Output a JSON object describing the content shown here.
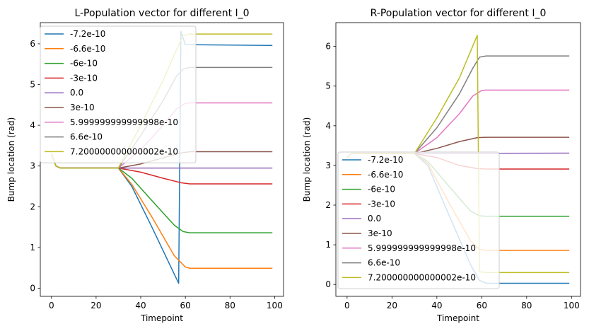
{
  "chart_data": [
    {
      "type": "line",
      "title": "L-Population vector for different I_0",
      "xlabel": "Timepoint",
      "ylabel": "Bump location (rad)",
      "xlim": [
        -5,
        104
      ],
      "ylim": [
        -0.2,
        6.52
      ],
      "xticks": [
        "0",
        "20",
        "40",
        "60",
        "80",
        "100"
      ],
      "yticks": [
        "0",
        "1",
        "2",
        "3",
        "4",
        "5",
        "6"
      ],
      "legend": "upper-left",
      "series": [
        {
          "name": "-7.2e-10",
          "color": "#1f77b4",
          "points": [
            [
              0,
              3.3
            ],
            [
              2,
              3.0
            ],
            [
              4,
              2.95
            ],
            [
              30,
              2.95
            ],
            [
              36,
              2.5
            ],
            [
              45,
              1.5
            ],
            [
              57,
              0.12
            ],
            [
              58,
              6.3
            ],
            [
              60,
              5.98
            ],
            [
              99,
              5.96
            ]
          ]
        },
        {
          "name": "-6.6e-10",
          "color": "#ff7f0e",
          "points": [
            [
              0,
              3.3
            ],
            [
              2,
              3.0
            ],
            [
              4,
              2.95
            ],
            [
              30,
              2.95
            ],
            [
              36,
              2.55
            ],
            [
              45,
              1.75
            ],
            [
              55,
              0.8
            ],
            [
              60,
              0.52
            ],
            [
              62,
              0.49
            ],
            [
              99,
              0.49
            ]
          ]
        },
        {
          "name": "-6e-10",
          "color": "#2ca02c",
          "points": [
            [
              0,
              3.3
            ],
            [
              2,
              3.0
            ],
            [
              4,
              2.95
            ],
            [
              30,
              2.95
            ],
            [
              36,
              2.7
            ],
            [
              45,
              2.15
            ],
            [
              55,
              1.55
            ],
            [
              59,
              1.39
            ],
            [
              62,
              1.36
            ],
            [
              99,
              1.36
            ]
          ]
        },
        {
          "name": "-3e-10",
          "color": "#d62728",
          "points": [
            [
              0,
              3.3
            ],
            [
              2,
              3.0
            ],
            [
              4,
              2.95
            ],
            [
              30,
              2.95
            ],
            [
              40,
              2.85
            ],
            [
              50,
              2.7
            ],
            [
              58,
              2.59
            ],
            [
              62,
              2.56
            ],
            [
              99,
              2.56
            ]
          ]
        },
        {
          "name": "0.0",
          "color": "#9467bd",
          "points": [
            [
              0,
              3.3
            ],
            [
              2,
              3.0
            ],
            [
              4,
              2.95
            ],
            [
              99,
              2.95
            ]
          ]
        },
        {
          "name": "3e-10",
          "color": "#8c564b",
          "points": [
            [
              0,
              3.3
            ],
            [
              2,
              3.0
            ],
            [
              4,
              2.95
            ],
            [
              30,
              2.95
            ],
            [
              40,
              3.05
            ],
            [
              50,
              3.2
            ],
            [
              58,
              3.32
            ],
            [
              62,
              3.35
            ],
            [
              99,
              3.35
            ]
          ]
        },
        {
          "name": "5.999999999999998e-10",
          "color": "#e377c2",
          "points": [
            [
              0,
              3.3
            ],
            [
              2,
              3.0
            ],
            [
              4,
              2.95
            ],
            [
              30,
              2.95
            ],
            [
              40,
              3.4
            ],
            [
              50,
              4.0
            ],
            [
              56,
              4.4
            ],
            [
              60,
              4.54
            ],
            [
              62,
              4.55
            ],
            [
              99,
              4.55
            ]
          ]
        },
        {
          "name": "6.6e-10",
          "color": "#7f7f7f",
          "points": [
            [
              0,
              3.3
            ],
            [
              2,
              3.0
            ],
            [
              4,
              2.95
            ],
            [
              30,
              2.95
            ],
            [
              40,
              3.75
            ],
            [
              50,
              4.6
            ],
            [
              56,
              5.2
            ],
            [
              59,
              5.38
            ],
            [
              62,
              5.42
            ],
            [
              99,
              5.42
            ]
          ]
        },
        {
          "name": "7.200000000000002e-10",
          "color": "#bcbd22",
          "points": [
            [
              0,
              3.3
            ],
            [
              2,
              3.0
            ],
            [
              4,
              2.95
            ],
            [
              30,
              2.95
            ],
            [
              40,
              4.0
            ],
            [
              50,
              5.1
            ],
            [
              56,
              5.85
            ],
            [
              59,
              6.2
            ],
            [
              62,
              6.24
            ],
            [
              99,
              6.24
            ]
          ]
        }
      ]
    },
    {
      "type": "line",
      "title": "R-Population vector for different I_0",
      "xlabel": "Timepoint",
      "ylabel": "Bump location (rad)",
      "xlim": [
        -5,
        104
      ],
      "ylim": [
        -0.3,
        6.6
      ],
      "xticks": [
        "0",
        "20",
        "40",
        "60",
        "80",
        "100"
      ],
      "yticks": [
        "0",
        "1",
        "2",
        "3",
        "4",
        "5",
        "6"
      ],
      "legend": "lower-left",
      "series": [
        {
          "name": "-7.2e-10",
          "color": "#1f77b4",
          "points": [
            [
              0,
              3.2
            ],
            [
              2,
              3.3
            ],
            [
              30,
              3.3
            ],
            [
              36,
              3.0
            ],
            [
              45,
              1.8
            ],
            [
              55,
              0.5
            ],
            [
              59,
              0.1
            ],
            [
              62,
              0.03
            ],
            [
              99,
              0.03
            ]
          ]
        },
        {
          "name": "-6.6e-10",
          "color": "#ff7f0e",
          "points": [
            [
              0,
              3.2
            ],
            [
              2,
              3.3
            ],
            [
              30,
              3.3
            ],
            [
              36,
              3.05
            ],
            [
              45,
              2.1
            ],
            [
              55,
              1.1
            ],
            [
              59,
              0.88
            ],
            [
              62,
              0.86
            ],
            [
              99,
              0.86
            ]
          ]
        },
        {
          "name": "-6e-10",
          "color": "#2ca02c",
          "points": [
            [
              0,
              3.2
            ],
            [
              2,
              3.3
            ],
            [
              30,
              3.3
            ],
            [
              36,
              3.1
            ],
            [
              45,
              2.5
            ],
            [
              55,
              1.85
            ],
            [
              59,
              1.73
            ],
            [
              62,
              1.72
            ],
            [
              99,
              1.72
            ]
          ]
        },
        {
          "name": "-3e-10",
          "color": "#d62728",
          "points": [
            [
              0,
              3.2
            ],
            [
              2,
              3.3
            ],
            [
              30,
              3.3
            ],
            [
              40,
              3.2
            ],
            [
              50,
              3.0
            ],
            [
              58,
              2.92
            ],
            [
              62,
              2.91
            ],
            [
              99,
              2.91
            ]
          ]
        },
        {
          "name": "0.0",
          "color": "#9467bd",
          "points": [
            [
              0,
              3.2
            ],
            [
              2,
              3.3
            ],
            [
              99,
              3.31
            ]
          ]
        },
        {
          "name": "3e-10",
          "color": "#8c564b",
          "points": [
            [
              0,
              3.2
            ],
            [
              2,
              3.3
            ],
            [
              30,
              3.3
            ],
            [
              40,
              3.43
            ],
            [
              50,
              3.6
            ],
            [
              58,
              3.7
            ],
            [
              62,
              3.71
            ],
            [
              99,
              3.71
            ]
          ]
        },
        {
          "name": "5.999999999999998e-10",
          "color": "#e377c2",
          "points": [
            [
              0,
              3.2
            ],
            [
              2,
              3.3
            ],
            [
              30,
              3.3
            ],
            [
              40,
              3.7
            ],
            [
              50,
              4.3
            ],
            [
              56,
              4.75
            ],
            [
              60,
              4.89
            ],
            [
              62,
              4.9
            ],
            [
              99,
              4.9
            ]
          ]
        },
        {
          "name": "6.6e-10",
          "color": "#7f7f7f",
          "points": [
            [
              0,
              3.2
            ],
            [
              2,
              3.3
            ],
            [
              30,
              3.3
            ],
            [
              40,
              3.95
            ],
            [
              50,
              4.8
            ],
            [
              56,
              5.45
            ],
            [
              59,
              5.73
            ],
            [
              62,
              5.76
            ],
            [
              99,
              5.76
            ]
          ]
        },
        {
          "name": "7.200000000000002e-10",
          "color": "#bcbd22",
          "points": [
            [
              0,
              3.2
            ],
            [
              2,
              3.3
            ],
            [
              30,
              3.3
            ],
            [
              40,
              4.2
            ],
            [
              50,
              5.2
            ],
            [
              58,
              6.28
            ],
            [
              59,
              0.32
            ],
            [
              62,
              0.3
            ],
            [
              99,
              0.3
            ]
          ]
        }
      ]
    }
  ]
}
